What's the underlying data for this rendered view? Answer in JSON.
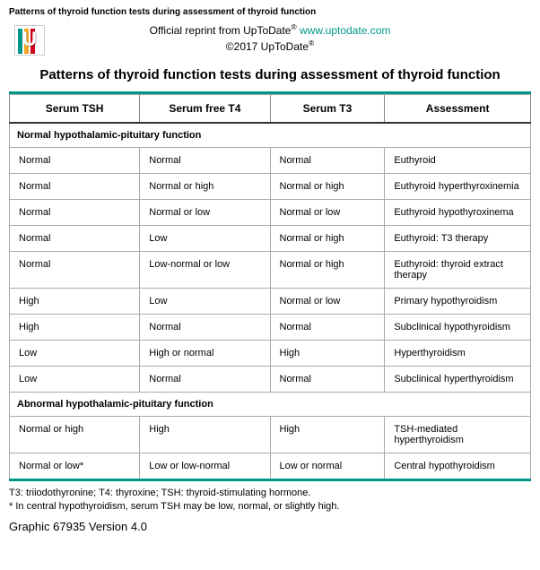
{
  "top_caption": "Patterns of thyroid function tests during assessment of thyroid function",
  "reprint": {
    "prefix": "Official reprint from UpToDate",
    "reg1": "®",
    "link_text": "www.uptodate.com",
    "link_color": "#009688"
  },
  "copyright": {
    "text": "©2017 UpToDate",
    "reg": "®"
  },
  "logo_colors": {
    "bar1": "#009688",
    "bar2": "#f5a623",
    "bar3": "#d0021b"
  },
  "title": "Patterns of thyroid function tests during assessment of thyroid function",
  "table": {
    "rule_color": "#009688",
    "border_color": "#888888",
    "columns": [
      "Serum TSH",
      "Serum free T4",
      "Serum T3",
      "Assessment"
    ],
    "sections": [
      {
        "heading": "Normal hypothalamic-pituitary function",
        "rows": [
          [
            "Normal",
            "Normal",
            "Normal",
            "Euthyroid"
          ],
          [
            "Normal",
            "Normal or high",
            "Normal or high",
            "Euthyroid hyperthyroxinemia"
          ],
          [
            "Normal",
            "Normal or low",
            "Normal or low",
            "Euthyroid hypothyroxinema"
          ],
          [
            "Normal",
            "Low",
            "Normal or high",
            "Euthyroid: T3 therapy"
          ],
          [
            "Normal",
            "Low-normal or low",
            "Normal or high",
            "Euthyroid: thyroid extract therapy"
          ],
          [
            "High",
            "Low",
            "Normal or low",
            "Primary hypothyroidism"
          ],
          [
            "High",
            "Normal",
            "Normal",
            "Subclinical hypothyroidism"
          ],
          [
            "Low",
            "High or normal",
            "High",
            "Hyperthyroidism"
          ],
          [
            "Low",
            "Normal",
            "Normal",
            "Subclinical hyperthyroidism"
          ]
        ]
      },
      {
        "heading": "Abnormal hypothalamic-pituitary function",
        "rows": [
          [
            "Normal or high",
            "High",
            "High",
            "TSH-mediated hyperthyroidism"
          ],
          [
            "Normal or low*",
            "Low or low-normal",
            "Low or normal",
            "Central hypothyroidism"
          ]
        ]
      }
    ]
  },
  "footnotes": [
    "T3: triiodothyronine; T4: thyroxine; TSH: thyroid-stimulating hormone.",
    "* In central hypothyroidism, serum TSH may be low, normal, or slightly high."
  ],
  "graphic_line": "Graphic 67935 Version 4.0"
}
